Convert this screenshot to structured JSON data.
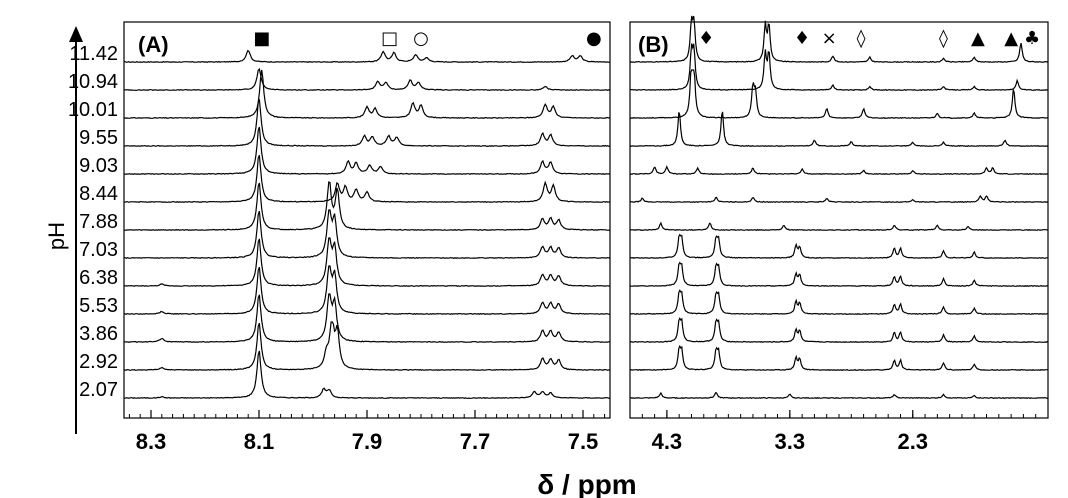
{
  "chart_data": [
    {
      "type": "line",
      "panel": "(A)",
      "ylabel": "pH",
      "xlabel": "δ / ppm",
      "xlim": [
        8.35,
        7.45
      ],
      "x_ticks": [
        "8.3",
        "8.1",
        "7.9",
        "7.7",
        "7.5"
      ],
      "x_tick_values": [
        8.3,
        8.1,
        7.9,
        7.7,
        7.5
      ],
      "ph_values": [
        "11.42",
        "10.94",
        "10.01",
        "9.55",
        "9.03",
        "8.44",
        "7.88",
        "7.03",
        "6.38",
        "5.53",
        "3.86",
        "2.92",
        "2.07"
      ],
      "markers": [
        {
          "symbol": "■",
          "x": 8.095
        },
        {
          "symbol": "□",
          "x": 7.858
        },
        {
          "symbol": "○",
          "x": 7.8
        },
        {
          "symbol": "●",
          "x": 7.48
        }
      ],
      "series": [
        {
          "name": "11.42",
          "peaks": [
            [
              8.12,
              1.0
            ],
            [
              7.87,
              0.85
            ],
            [
              7.85,
              0.75
            ],
            [
              7.81,
              0.6
            ],
            [
              7.79,
              0.35
            ],
            [
              7.52,
              0.5
            ],
            [
              7.505,
              0.5
            ]
          ]
        },
        {
          "name": "10.94",
          "peaks": [
            [
              8.1,
              1.8
            ],
            [
              7.88,
              0.7
            ],
            [
              7.865,
              0.6
            ],
            [
              7.82,
              0.8
            ],
            [
              7.805,
              0.6
            ],
            [
              7.57,
              0.3
            ]
          ]
        },
        {
          "name": "10.01",
          "peaks": [
            [
              8.095,
              4.0
            ],
            [
              7.9,
              0.9
            ],
            [
              7.885,
              0.75
            ],
            [
              7.815,
              1.2
            ],
            [
              7.8,
              1.0
            ],
            [
              7.57,
              1.1
            ],
            [
              7.555,
              0.9
            ]
          ]
        },
        {
          "name": "9.55",
          "peaks": [
            [
              8.1,
              4.0
            ],
            [
              7.905,
              0.8
            ],
            [
              7.89,
              0.75
            ],
            [
              7.86,
              0.8
            ],
            [
              7.845,
              0.7
            ],
            [
              7.575,
              1.0
            ],
            [
              7.56,
              0.9
            ]
          ]
        },
        {
          "name": "9.03",
          "peaks": [
            [
              8.1,
              4.0
            ],
            [
              7.935,
              1.0
            ],
            [
              7.92,
              0.9
            ],
            [
              7.895,
              0.7
            ],
            [
              7.875,
              0.6
            ],
            [
              7.575,
              1.0
            ],
            [
              7.56,
              0.95
            ]
          ]
        },
        {
          "name": "8.44",
          "peaks": [
            [
              8.1,
              4.0
            ],
            [
              7.955,
              1.5
            ],
            [
              7.94,
              1.2
            ],
            [
              7.92,
              1.0
            ],
            [
              7.9,
              0.8
            ],
            [
              7.57,
              1.5
            ],
            [
              7.555,
              1.3
            ]
          ]
        },
        {
          "name": "7.88",
          "peaks": [
            [
              8.1,
              4.0
            ],
            [
              7.97,
              4.0
            ],
            [
              7.955,
              3.2
            ],
            [
              7.575,
              0.9
            ],
            [
              7.56,
              0.9
            ],
            [
              7.545,
              0.8
            ]
          ]
        },
        {
          "name": "7.03",
          "peaks": [
            [
              8.1,
              4.0
            ],
            [
              7.97,
              4.0
            ],
            [
              7.96,
              3.0
            ],
            [
              7.575,
              0.9
            ],
            [
              7.56,
              0.85
            ],
            [
              7.545,
              0.8
            ]
          ]
        },
        {
          "name": "6.38",
          "peaks": [
            [
              8.28,
              0.15
            ],
            [
              8.1,
              4.0
            ],
            [
              7.97,
              4.0
            ],
            [
              7.96,
              3.0
            ],
            [
              7.575,
              0.9
            ],
            [
              7.56,
              0.85
            ],
            [
              7.545,
              0.8
            ]
          ]
        },
        {
          "name": "5.53",
          "peaks": [
            [
              8.28,
              0.2
            ],
            [
              8.1,
              4.0
            ],
            [
              7.97,
              4.0
            ],
            [
              7.96,
              3.0
            ],
            [
              7.575,
              0.9
            ],
            [
              7.56,
              0.85
            ],
            [
              7.545,
              0.8
            ]
          ]
        },
        {
          "name": "3.86",
          "peaks": [
            [
              8.28,
              0.3
            ],
            [
              8.1,
              4.0
            ],
            [
              7.97,
              4.0
            ],
            [
              7.96,
              3.0
            ],
            [
              7.575,
              0.9
            ],
            [
              7.56,
              0.85
            ],
            [
              7.545,
              0.8
            ]
          ]
        },
        {
          "name": "2.92",
          "peaks": [
            [
              8.28,
              0.2
            ],
            [
              8.1,
              4.0
            ],
            [
              7.975,
              1.2
            ],
            [
              7.965,
              4.0
            ],
            [
              7.955,
              3.0
            ],
            [
              7.575,
              0.9
            ],
            [
              7.56,
              0.85
            ],
            [
              7.545,
              0.8
            ]
          ]
        },
        {
          "name": "2.07",
          "peaks": [
            [
              8.28,
              0.1
            ],
            [
              8.1,
              4.0
            ],
            [
              7.98,
              0.7
            ],
            [
              7.97,
              0.6
            ],
            [
              7.59,
              0.5
            ],
            [
              7.575,
              0.5
            ],
            [
              7.56,
              0.4
            ]
          ]
        }
      ]
    },
    {
      "type": "line",
      "panel": "(B)",
      "xlim": [
        4.6,
        1.2
      ],
      "x_ticks": [
        "4.3",
        "3.3",
        "2.3"
      ],
      "x_tick_values": [
        4.3,
        3.3,
        2.3
      ],
      "markers": [
        {
          "symbol": "♦",
          "x": 3.98
        },
        {
          "symbol": "♦",
          "x": 3.2
        },
        {
          "symbol": "×",
          "x": 2.98
        },
        {
          "symbol": "◊",
          "x": 2.72
        },
        {
          "symbol": "◊",
          "x": 2.05
        },
        {
          "symbol": "▲",
          "x": 1.77
        },
        {
          "symbol": "▲",
          "x": 1.5
        },
        {
          "symbol": "♣",
          "x": 1.33
        }
      ],
      "series": [
        {
          "name": "11.42",
          "peaks": [
            [
              4.1,
              3.0
            ],
            [
              4.08,
              3.0
            ],
            [
              3.5,
              3.0
            ],
            [
              3.47,
              3.0
            ],
            [
              2.95,
              0.5
            ],
            [
              2.65,
              0.4
            ],
            [
              2.05,
              0.3
            ],
            [
              1.8,
              0.4
            ],
            [
              1.42,
              1.6
            ]
          ]
        },
        {
          "name": "10.94",
          "peaks": [
            [
              4.1,
              3.0
            ],
            [
              4.08,
              3.0
            ],
            [
              3.5,
              3.0
            ],
            [
              3.47,
              3.0
            ],
            [
              2.95,
              0.4
            ],
            [
              2.65,
              0.3
            ],
            [
              2.05,
              0.3
            ],
            [
              1.8,
              0.3
            ],
            [
              1.45,
              0.8
            ]
          ]
        },
        {
          "name": "10.01",
          "peaks": [
            [
              4.1,
              4.0
            ],
            [
              4.08,
              3.5
            ],
            [
              3.6,
              2.5
            ],
            [
              3.58,
              2.0
            ],
            [
              3.0,
              0.8
            ],
            [
              2.7,
              0.8
            ],
            [
              2.1,
              0.4
            ],
            [
              1.8,
              0.4
            ],
            [
              1.48,
              2.5
            ]
          ]
        },
        {
          "name": "9.55",
          "peaks": [
            [
              4.2,
              3.0
            ],
            [
              3.85,
              3.0
            ],
            [
              3.1,
              0.5
            ],
            [
              2.8,
              0.4
            ],
            [
              2.3,
              0.3
            ],
            [
              2.05,
              0.3
            ],
            [
              1.55,
              0.5
            ]
          ]
        },
        {
          "name": "9.03",
          "peaks": [
            [
              4.4,
              0.6
            ],
            [
              4.3,
              0.6
            ],
            [
              4.05,
              0.5
            ],
            [
              3.6,
              0.5
            ],
            [
              3.2,
              0.4
            ],
            [
              2.7,
              0.3
            ],
            [
              2.3,
              0.3
            ],
            [
              1.7,
              0.5
            ],
            [
              1.65,
              0.5
            ]
          ]
        },
        {
          "name": "8.44",
          "peaks": [
            [
              4.5,
              0.3
            ],
            [
              3.9,
              0.4
            ],
            [
              3.6,
              0.4
            ],
            [
              3.0,
              0.3
            ],
            [
              2.3,
              0.2
            ],
            [
              1.75,
              0.5
            ],
            [
              1.7,
              0.5
            ]
          ]
        },
        {
          "name": "7.88",
          "peaks": [
            [
              4.35,
              0.6
            ],
            [
              3.95,
              0.6
            ],
            [
              3.35,
              0.4
            ],
            [
              2.45,
              0.4
            ],
            [
              2.1,
              0.4
            ],
            [
              1.85,
              0.3
            ]
          ]
        },
        {
          "name": "7.03",
          "peaks": [
            [
              4.2,
              1.6
            ],
            [
              4.18,
              1.5
            ],
            [
              3.9,
              1.5
            ],
            [
              3.88,
              1.4
            ],
            [
              3.25,
              1.0
            ],
            [
              3.22,
              0.9
            ],
            [
              2.45,
              0.8
            ],
            [
              2.4,
              0.8
            ],
            [
              2.05,
              0.6
            ],
            [
              1.8,
              0.5
            ]
          ]
        },
        {
          "name": "6.38",
          "peaks": [
            [
              4.2,
              1.6
            ],
            [
              4.18,
              1.5
            ],
            [
              3.9,
              1.5
            ],
            [
              3.88,
              1.4
            ],
            [
              3.25,
              1.0
            ],
            [
              3.22,
              0.9
            ],
            [
              2.45,
              0.8
            ],
            [
              2.4,
              0.8
            ],
            [
              2.05,
              0.6
            ],
            [
              1.8,
              0.5
            ]
          ]
        },
        {
          "name": "5.53",
          "peaks": [
            [
              4.2,
              1.6
            ],
            [
              4.18,
              1.5
            ],
            [
              3.9,
              1.5
            ],
            [
              3.88,
              1.4
            ],
            [
              3.25,
              1.0
            ],
            [
              3.22,
              0.9
            ],
            [
              2.45,
              0.8
            ],
            [
              2.4,
              0.8
            ],
            [
              2.05,
              0.6
            ],
            [
              1.8,
              0.5
            ]
          ]
        },
        {
          "name": "3.86",
          "peaks": [
            [
              4.2,
              1.6
            ],
            [
              4.18,
              1.5
            ],
            [
              3.9,
              1.5
            ],
            [
              3.88,
              1.4
            ],
            [
              3.25,
              1.0
            ],
            [
              3.22,
              0.9
            ],
            [
              2.45,
              0.8
            ],
            [
              2.4,
              0.8
            ],
            [
              2.05,
              0.6
            ],
            [
              1.8,
              0.5
            ]
          ]
        },
        {
          "name": "2.92",
          "peaks": [
            [
              4.2,
              1.6
            ],
            [
              4.18,
              1.5
            ],
            [
              3.9,
              1.5
            ],
            [
              3.88,
              1.4
            ],
            [
              3.25,
              1.0
            ],
            [
              3.22,
              0.9
            ],
            [
              2.45,
              0.8
            ],
            [
              2.4,
              0.8
            ],
            [
              2.05,
              0.6
            ],
            [
              1.8,
              0.5
            ]
          ]
        },
        {
          "name": "2.07",
          "peaks": [
            [
              4.35,
              0.4
            ],
            [
              3.9,
              0.5
            ],
            [
              3.3,
              0.3
            ],
            [
              2.45,
              0.3
            ],
            [
              2.05,
              0.3
            ],
            [
              1.8,
              0.2
            ]
          ]
        }
      ]
    }
  ]
}
